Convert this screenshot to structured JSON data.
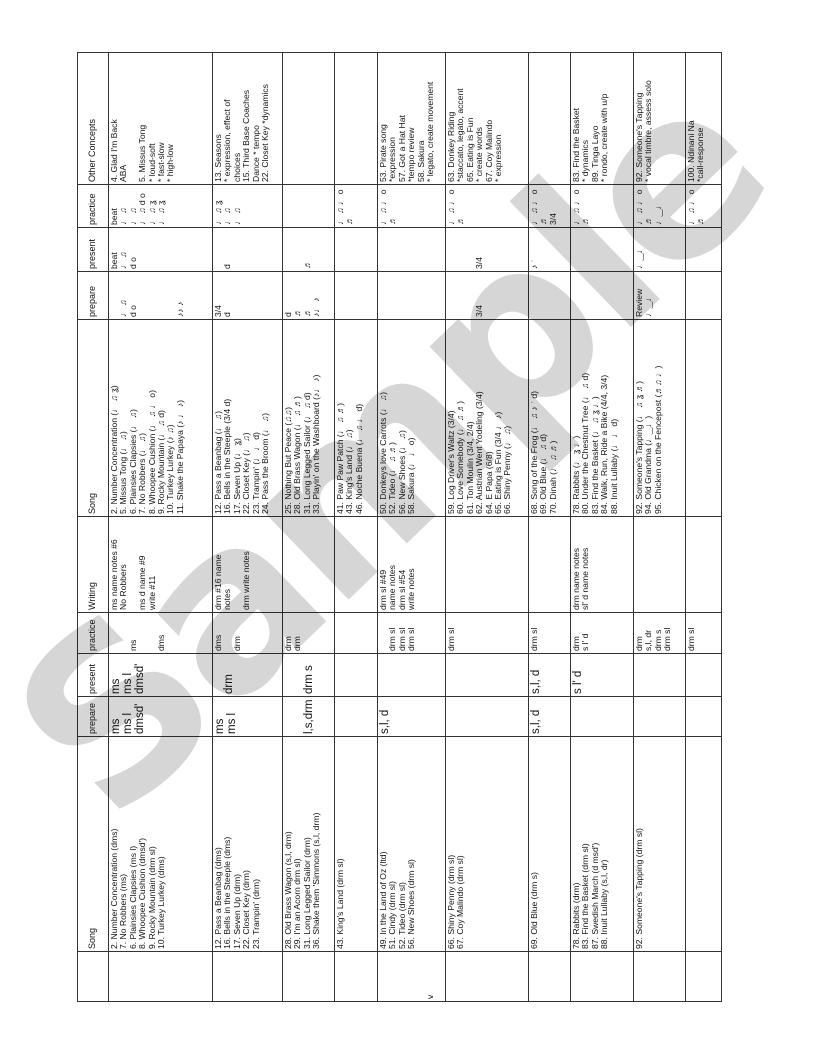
{
  "watermark": "Sample",
  "table": {
    "headers": [
      "",
      "Song",
      "prepare",
      "present",
      "practice",
      "Writing",
      "Song",
      "prepare",
      "present",
      "practice",
      "Other Concepts"
    ],
    "rows": [
      [
        [],
        [
          "2. Number Concentration  (dms)",
          "7. No Robbers  (ms)",
          "6. Plainsies Clapsies  (ms l)",
          "8. Whoopee Cushion  (dmsd')",
          "9. Rocky Mountain  (drm sl)",
          "10. Turkey Lurkey  (dms)"
        ],
        [
          "ms",
          "ms l",
          "dmsd'"
        ],
        [
          "ms",
          "ms l",
          "dmsd'"
        ],
        [
          "",
          "",
          "ms",
          "",
          "",
          "dms"
        ],
        [
          "ms  name notes #6",
          "No Robbers",
          "",
          "ms d name #9",
          "write #11"
        ],
        [
          "2. Number Concentration  (♩ ♫ ʓ)",
          "5. Missus Tong  (♩ ♫)",
          "6. Plainsies Clapsies  (♩ ♫)",
          "7. No Robbers  (♩ ♫)",
          "8. Whoopee Cushion  (♩ ♫ ♩ o)",
          "9. Rocky Mountain  (♩ ♫ d)",
          "10. Turkey Lurkey  (♪ ♫)",
          "11. Shake the Papaya  (♪ ♩ ♪)"
        ],
        [
          "",
          "♩ ♫",
          "d o",
          "",
          "",
          "",
          "",
          "♪♪ ♪"
        ],
        [
          "beat",
          "♩ ♫",
          "d o"
        ],
        [
          "beat",
          "♩ ♫",
          "♩ ♫",
          "♩ ♫ d o",
          "♩ ♫ ʓ",
          "♩ ♫ ʓ"
        ],
        [
          "4. Glad I'm Back",
          "ABA",
          "",
          "5.  Missus Tong",
          "* loud-soft",
          "* fast-slow",
          "* high-low"
        ]
      ],
      [
        [],
        [
          "12. Pass a Beanbag  (dms)",
          "16. Bells in the Steeple  (dms)",
          "17. Seven Up  (drm)",
          "22. Closet Key  (drm)",
          "23. Trampin'  (drm)"
        ],
        [
          "ms",
          "ms l"
        ],
        [
          "",
          "drm"
        ],
        [
          "dms",
          "",
          "drm"
        ],
        [
          "drm #16 name",
          "notes",
          "",
          "drm write notes"
        ],
        [
          "12. Pass a Beanbag  (♩ ♫)",
          "16. Bells in the Steeple  (3/4  d)",
          "17. Seven Up  (♩ ʓ)",
          "22. Closet Key  (♩ ♫)",
          "23. Trampin'  (♩ ♩ d)",
          "24.  Pass the Broom  (♩ ♫)"
        ],
        [
          "3/4",
          "d"
        ],
        [
          "",
          "d"
        ],
        [
          "♩ ♫ ʓ",
          "♩ ♫",
          "♩ ♫"
        ],
        [
          "13. Seasons",
          "* expression, effect of",
          "choices",
          "15.  Third Base Coaches",
          "Dance  * tempo",
          "22. Closet Key  *dynamics"
        ]
      ],
      [
        [],
        [
          "28. Old Brass Wagon  (s,l, drm)",
          "29. I'm an Acorn  drm sl)",
          "31. Long Legged Sailor  (drm)",
          "36. Shake them 'Simmons  (s,l, drm)"
        ],
        [
          "",
          "",
          "l,s,drm"
        ],
        [
          "",
          "",
          "drm s"
        ],
        [
          "drm",
          "drm"
        ],
        [],
        [
          "25. Nothing But Peace  (♫♫)",
          "28. Old Brass Wagon  (♩ ♫ ♬)",
          "31. Long Legged Sailor  (♩ ♫ d)",
          "33. Playin' on the  Washboard  (♪♩ ♪)"
        ],
        [
          "d",
          "♬",
          "♬",
          "♪♩ ♪"
        ],
        [
          "",
          "",
          "♬"
        ],
        [],
        []
      ],
      [
        [],
        [
          "43. King's Land  (drm sl)"
        ],
        [],
        [],
        [],
        [],
        [
          "41. Paw Paw Patch  (♩ ♫ ♬)",
          "43. King's Land  (♩ ♫)",
          "46. Noche Buena  (♩ ♫ ♩ d)"
        ],
        [],
        [],
        [
          "♩ ♫ ♩ o",
          "♬"
        ],
        []
      ],
      [
        [
          "",
          "",
          "",
          "",
          "",
          "v"
        ],
        [
          "49. In the Land of Oz (ltd)",
          "51. Cindy  (drm sl)",
          "52. Tideo  (drm sl)",
          "56. New Shoes  (drm sl)"
        ],
        [
          "s,l, d"
        ],
        [],
        [
          "",
          "drm sl",
          "drm sl",
          "drm sl"
        ],
        [
          "drm sl #49",
          "name notes",
          "drm sl #54",
          "write notes"
        ],
        [
          "50. Donkeys love Carrots  (♩ ♫)",
          "52. Tideo  (♩ ♫ ♬)",
          "56. New Shoes  (♩ ♫)",
          "58. Sakura  (♩ ♩ o)"
        ],
        [],
        [],
        [
          "♩ ♫ ♩ o",
          "♬"
        ],
        [
          "53. Pirate song",
          "*expression",
          "57.  Got a Hat Hat",
          "*tempo review",
          "58. Sakura",
          "* legato, create movement"
        ]
      ],
      [
        [],
        [
          "66.  Shiny Penny  (drm sl)",
          "67.  Coy Malindo  (drm sl)"
        ],
        [],
        [],
        [
          "drm sl"
        ],
        [],
        [
          "59. Log Driver's Waltz  (3/4)",
          "60. Love Somebody  (♩ ♫ ♬)",
          "61. Ton Moulin  (3/4, 2/4)",
          "62. Austrian Went Yodeling  (3/4)",
          "64. E Papa  (6/8)",
          "65. Eating is Fun  (3/4 ♩ ♪)",
          "66. Shiny Penny  (♩ ♫)"
        ],
        [
          "",
          "",
          "",
          "3/4"
        ],
        [
          "",
          "",
          "",
          "3/4"
        ],
        [
          "♩ ♫ ♩ o",
          "♬"
        ],
        [
          "63.  Donkey Riding",
          "*staccato, legato, accent",
          "65.  Eating is Fun",
          "* create words",
          "67.  Coy Malindo",
          "* expression"
        ]
      ],
      [
        [],
        [
          "69. Old Blue  (drm s)"
        ],
        [
          "s,l, d"
        ],
        [
          "s,l, d"
        ],
        [
          "drm sl"
        ],
        [],
        [
          "68. Song of the Frog  (♩ ♫ ♪ ʾ d)",
          "69. Old Blue  (♩ ♫ d)",
          "70. Dinah  (♩ ♫ ♬)"
        ],
        [],
        [
          "♪ ʾ"
        ],
        [
          "♩ ♫ ♩ o",
          "♬",
          "3/4"
        ],
        []
      ],
      [
        [],
        [
          "78. Rabbits  (drm)",
          "83. Find the Basket  (drm sl)",
          "87. Swedish March  (d msd')",
          "88. Inuit Lullaby  (s,l, dr)"
        ],
        [],
        [
          "s l' d"
        ],
        [
          "drm",
          "s l' d"
        ],
        [
          "drm name notes",
          "sl' d name notes"
        ],
        [
          "78. Rabbits  (♩ ʓ ♩)",
          "80. Under the Chestnut Tree  (♩ ♫ d)",
          "83. Find the Basket  (♩ ♫ ʓ ♩)",
          "84. Walk, Run, Ride a Bike  (4/4, 3/4)",
          "88. Inuit Lullaby  (♩ ♩ d)"
        ],
        [],
        [],
        [
          "♩ ♫ ♩ o",
          "♬"
        ],
        [
          "83. Find the Basket",
          "* dynamics",
          "89.  Tinga Layo",
          "* rondo, create with u/p"
        ]
      ],
      [
        [],
        [
          "92. Someone's Tapping  (drm sl)"
        ],
        [],
        [],
        [
          "drm",
          "s,l, dr",
          "drm s",
          "drm sl"
        ],
        [],
        [
          "92. Someone's Tapping  (♩ ♫ ʓ ♬)",
          "94. Old Grandma  (♩‿♩)",
          "95. Chicken on the Fencepost  (♬♫ ♩)"
        ],
        [
          "Review",
          "♩‿♩"
        ],
        [
          "♩‿♩"
        ],
        [
          "♩ ♫ ♩ o",
          "♬",
          "♩‿♩"
        ],
        [
          "92.  Someone's Tapping",
          "* vocal timbre, assess solo"
        ]
      ],
      [
        [],
        [],
        [],
        [],
        [
          "drm sl"
        ],
        [],
        [],
        [],
        [],
        [
          "♩ ♫ ♩ o",
          "♬"
        ],
        [
          "100. Ndinani Na",
          "*call-response"
        ]
      ]
    ]
  }
}
